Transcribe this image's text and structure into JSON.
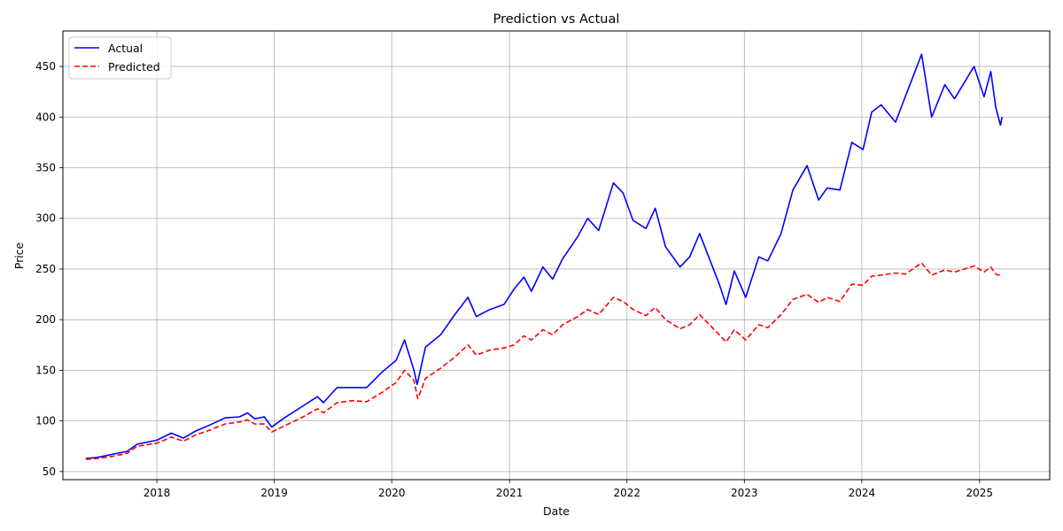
{
  "chart_data": {
    "type": "line",
    "title": "Prediction vs Actual",
    "xlabel": "Date",
    "ylabel": "Price",
    "x_axis_type": "date",
    "xlim": [
      "2017-03-15",
      "2025-08-07"
    ],
    "ylim": [
      42,
      485
    ],
    "x_ticks": [
      "2018",
      "2019",
      "2020",
      "2021",
      "2022",
      "2023",
      "2024",
      "2025"
    ],
    "y_ticks": [
      50,
      100,
      150,
      200,
      250,
      300,
      350,
      400,
      450
    ],
    "grid": true,
    "legend_position": "top-left",
    "series": [
      {
        "name": "Actual",
        "color": "#0000ff",
        "style": "solid",
        "points": [
          [
            "2017-05-25",
            63
          ],
          [
            "2017-07-01",
            64
          ],
          [
            "2017-08-15",
            67
          ],
          [
            "2017-10-01",
            70
          ],
          [
            "2017-11-01",
            77
          ],
          [
            "2018-01-01",
            81
          ],
          [
            "2018-02-15",
            88
          ],
          [
            "2018-03-25",
            83
          ],
          [
            "2018-05-01",
            90
          ],
          [
            "2018-06-15",
            96
          ],
          [
            "2018-08-01",
            103
          ],
          [
            "2018-09-15",
            104
          ],
          [
            "2018-10-10",
            108
          ],
          [
            "2018-11-01",
            102
          ],
          [
            "2018-12-01",
            104
          ],
          [
            "2018-12-24",
            94
          ],
          [
            "2019-02-01",
            103
          ],
          [
            "2019-04-01",
            115
          ],
          [
            "2019-05-15",
            124
          ],
          [
            "2019-06-03",
            118
          ],
          [
            "2019-07-15",
            133
          ],
          [
            "2019-09-01",
            133
          ],
          [
            "2019-10-15",
            133
          ],
          [
            "2019-12-01",
            148
          ],
          [
            "2020-01-15",
            160
          ],
          [
            "2020-02-10",
            180
          ],
          [
            "2020-03-10",
            150
          ],
          [
            "2020-03-20",
            136
          ],
          [
            "2020-04-15",
            173
          ],
          [
            "2020-06-01",
            185
          ],
          [
            "2020-07-15",
            205
          ],
          [
            "2020-08-25",
            222
          ],
          [
            "2020-09-20",
            203
          ],
          [
            "2020-11-01",
            210
          ],
          [
            "2020-12-15",
            215
          ],
          [
            "2021-01-15",
            230
          ],
          [
            "2021-02-15",
            242
          ],
          [
            "2021-03-10",
            228
          ],
          [
            "2021-04-15",
            252
          ],
          [
            "2021-05-15",
            240
          ],
          [
            "2021-06-15",
            260
          ],
          [
            "2021-08-01",
            282
          ],
          [
            "2021-09-01",
            300
          ],
          [
            "2021-10-05",
            288
          ],
          [
            "2021-11-20",
            335
          ],
          [
            "2021-12-20",
            325
          ],
          [
            "2022-01-20",
            298
          ],
          [
            "2022-03-01",
            290
          ],
          [
            "2022-03-30",
            310
          ],
          [
            "2022-05-01",
            272
          ],
          [
            "2022-06-15",
            252
          ],
          [
            "2022-07-15",
            262
          ],
          [
            "2022-08-15",
            285
          ],
          [
            "2022-10-15",
            235
          ],
          [
            "2022-11-05",
            215
          ],
          [
            "2022-12-01",
            248
          ],
          [
            "2023-01-05",
            222
          ],
          [
            "2023-02-15",
            262
          ],
          [
            "2023-03-15",
            258
          ],
          [
            "2023-04-25",
            285
          ],
          [
            "2023-06-01",
            328
          ],
          [
            "2023-07-15",
            352
          ],
          [
            "2023-08-20",
            318
          ],
          [
            "2023-09-15",
            330
          ],
          [
            "2023-10-25",
            328
          ],
          [
            "2023-12-01",
            375
          ],
          [
            "2024-01-05",
            368
          ],
          [
            "2024-02-01",
            405
          ],
          [
            "2024-03-01",
            412
          ],
          [
            "2024-04-15",
            395
          ],
          [
            "2024-05-15",
            420
          ],
          [
            "2024-07-05",
            462
          ],
          [
            "2024-08-05",
            400
          ],
          [
            "2024-09-15",
            432
          ],
          [
            "2024-10-15",
            418
          ],
          [
            "2024-12-15",
            450
          ],
          [
            "2025-01-15",
            420
          ],
          [
            "2025-02-05",
            445
          ],
          [
            "2025-02-20",
            410
          ],
          [
            "2025-03-07",
            392
          ],
          [
            "2025-03-12",
            400
          ]
        ]
      },
      {
        "name": "Predicted",
        "color": "#ff0000",
        "style": "dashed",
        "points": [
          [
            "2017-05-25",
            62
          ],
          [
            "2017-07-01",
            63
          ],
          [
            "2017-08-15",
            65
          ],
          [
            "2017-10-01",
            68
          ],
          [
            "2017-11-01",
            75
          ],
          [
            "2018-01-01",
            78
          ],
          [
            "2018-02-15",
            84
          ],
          [
            "2018-03-25",
            80
          ],
          [
            "2018-05-01",
            86
          ],
          [
            "2018-06-15",
            91
          ],
          [
            "2018-08-01",
            97
          ],
          [
            "2018-09-15",
            99
          ],
          [
            "2018-10-10",
            101
          ],
          [
            "2018-11-01",
            97
          ],
          [
            "2018-12-01",
            97
          ],
          [
            "2018-12-24",
            89
          ],
          [
            "2019-02-01",
            95
          ],
          [
            "2019-04-01",
            104
          ],
          [
            "2019-05-15",
            112
          ],
          [
            "2019-06-03",
            108
          ],
          [
            "2019-07-15",
            118
          ],
          [
            "2019-09-01",
            120
          ],
          [
            "2019-10-15",
            119
          ],
          [
            "2019-12-01",
            128
          ],
          [
            "2020-01-15",
            138
          ],
          [
            "2020-02-10",
            150
          ],
          [
            "2020-03-10",
            140
          ],
          [
            "2020-03-22",
            122
          ],
          [
            "2020-04-15",
            142
          ],
          [
            "2020-06-01",
            152
          ],
          [
            "2020-07-15",
            163
          ],
          [
            "2020-08-25",
            175
          ],
          [
            "2020-09-20",
            165
          ],
          [
            "2020-11-01",
            170
          ],
          [
            "2020-12-15",
            172
          ],
          [
            "2021-01-15",
            175
          ],
          [
            "2021-02-15",
            184
          ],
          [
            "2021-03-10",
            180
          ],
          [
            "2021-04-15",
            190
          ],
          [
            "2021-05-15",
            185
          ],
          [
            "2021-06-15",
            195
          ],
          [
            "2021-08-01",
            203
          ],
          [
            "2021-09-01",
            210
          ],
          [
            "2021-10-05",
            205
          ],
          [
            "2021-11-20",
            222
          ],
          [
            "2021-12-20",
            218
          ],
          [
            "2022-01-20",
            210
          ],
          [
            "2022-03-01",
            204
          ],
          [
            "2022-03-30",
            212
          ],
          [
            "2022-05-01",
            200
          ],
          [
            "2022-06-15",
            191
          ],
          [
            "2022-07-15",
            195
          ],
          [
            "2022-08-15",
            205
          ],
          [
            "2022-10-15",
            185
          ],
          [
            "2022-11-05",
            178
          ],
          [
            "2022-12-01",
            190
          ],
          [
            "2023-01-05",
            180
          ],
          [
            "2023-02-15",
            195
          ],
          [
            "2023-03-15",
            192
          ],
          [
            "2023-04-25",
            205
          ],
          [
            "2023-06-01",
            220
          ],
          [
            "2023-07-15",
            225
          ],
          [
            "2023-08-20",
            217
          ],
          [
            "2023-09-15",
            222
          ],
          [
            "2023-10-25",
            218
          ],
          [
            "2023-12-01",
            235
          ],
          [
            "2024-01-05",
            234
          ],
          [
            "2024-02-01",
            243
          ],
          [
            "2024-03-01",
            244
          ],
          [
            "2024-04-15",
            246
          ],
          [
            "2024-05-15",
            245
          ],
          [
            "2024-07-05",
            256
          ],
          [
            "2024-08-05",
            244
          ],
          [
            "2024-09-15",
            249
          ],
          [
            "2024-10-15",
            247
          ],
          [
            "2024-12-15",
            253
          ],
          [
            "2025-01-15",
            247
          ],
          [
            "2025-02-05",
            252
          ],
          [
            "2025-02-20",
            245
          ],
          [
            "2025-03-12",
            243
          ]
        ]
      }
    ]
  }
}
